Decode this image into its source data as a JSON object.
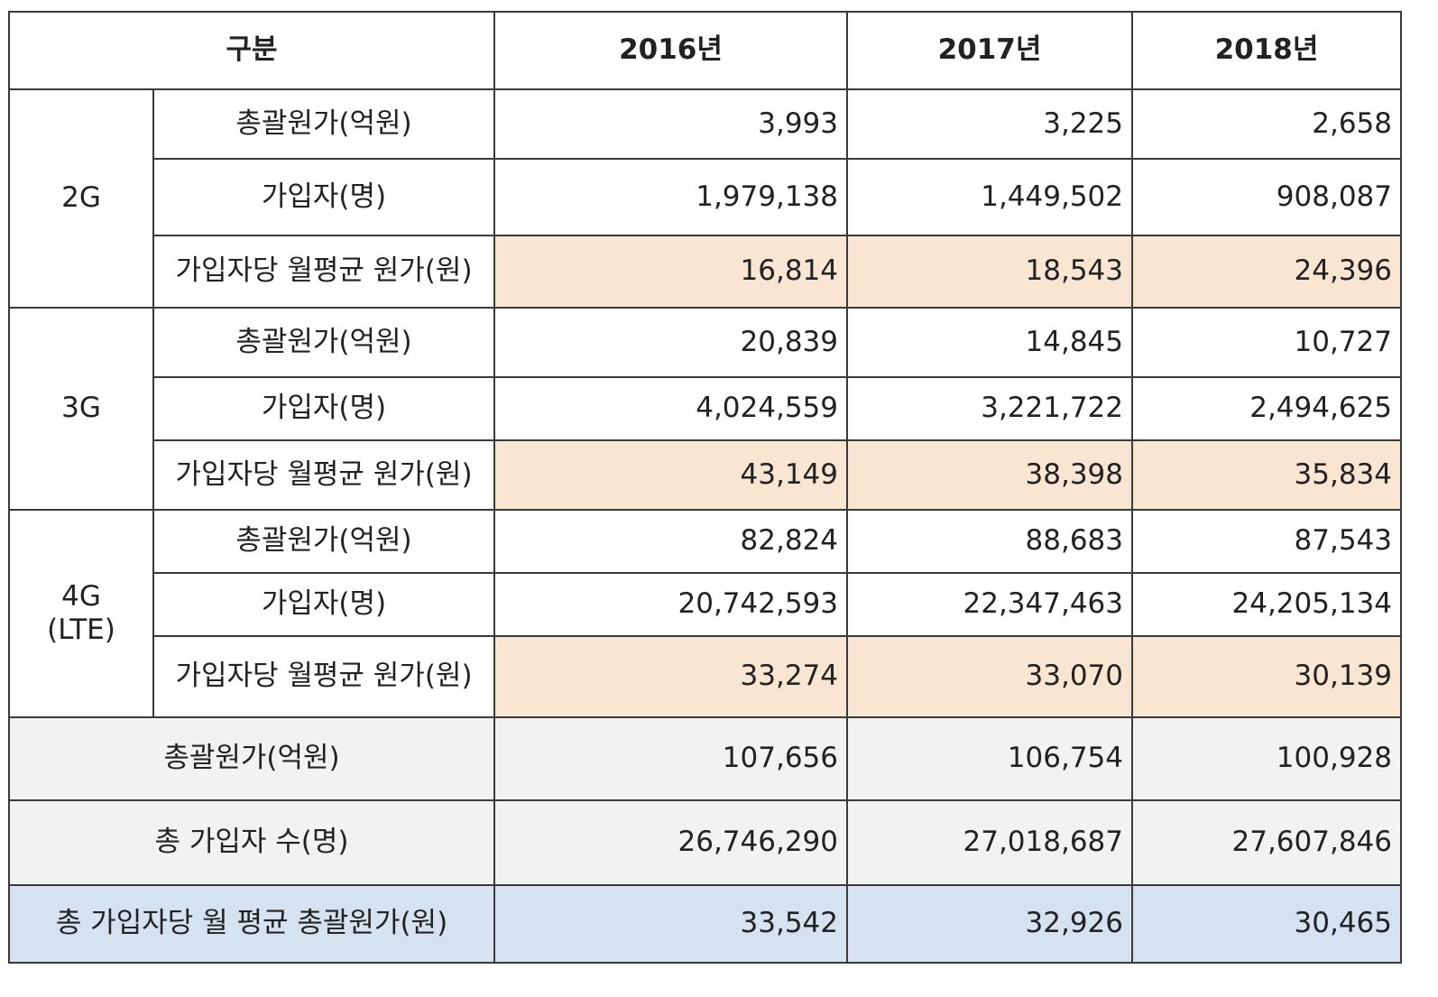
{
  "header": {
    "category": "구분",
    "years": [
      "2016년",
      "2017년",
      "2018년"
    ]
  },
  "groups": [
    {
      "name": "2G",
      "rows": [
        {
          "label": "총괄원가(억원)",
          "values": [
            "3,993",
            "3,225",
            "2,658"
          ]
        },
        {
          "label": "가입자(명)",
          "values": [
            "1,979,138",
            "1,449,502",
            "908,087"
          ]
        },
        {
          "label": "가입자당 월평균 원가(원)",
          "values": [
            "16,814",
            "18,543",
            "24,396"
          ]
        }
      ]
    },
    {
      "name": "3G",
      "rows": [
        {
          "label": "총괄원가(억원)",
          "values": [
            "20,839",
            "14,845",
            "10,727"
          ]
        },
        {
          "label": "가입자(명)",
          "values": [
            "4,024,559",
            "3,221,722",
            "2,494,625"
          ]
        },
        {
          "label": "가입자당 월평균 원가(원)",
          "values": [
            "43,149",
            "38,398",
            "35,834"
          ]
        }
      ]
    },
    {
      "name_line1": "4G",
      "name_line2": "(LTE)",
      "rows": [
        {
          "label": "총괄원가(억원)",
          "values": [
            "82,824",
            "88,683",
            "87,543"
          ]
        },
        {
          "label": "가입자(명)",
          "values": [
            "20,742,593",
            "22,347,463",
            "24,205,134"
          ]
        },
        {
          "label": "가입자당 월평균 원가(원)",
          "values": [
            "33,274",
            "33,070",
            "30,139"
          ]
        }
      ]
    }
  ],
  "totals": [
    {
      "label": "총괄원가(억원)",
      "values": [
        "107,656",
        "106,754",
        "100,928"
      ]
    },
    {
      "label": "총 가입자 수(명)",
      "values": [
        "26,746,290",
        "27,018,687",
        "27,607,846"
      ]
    },
    {
      "label": "총 가입자당 월 평균 총괄원가(원)",
      "values": [
        "33,542",
        "32,926",
        "30,465"
      ]
    }
  ],
  "colors": {
    "highlight_row": "#f8e5d2",
    "total_row": "#f2f2f2",
    "final_row": "#d5e3f1",
    "border": "#3a3a3a"
  }
}
